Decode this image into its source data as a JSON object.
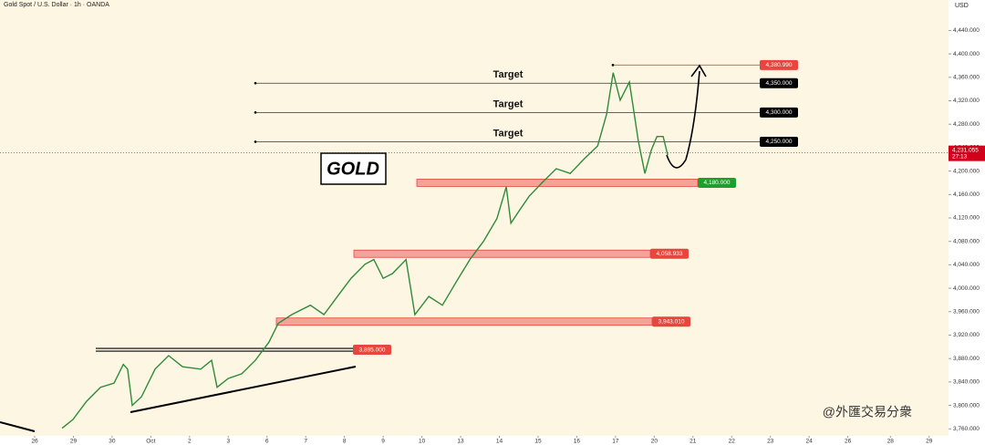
{
  "chart_data": {
    "type": "line",
    "title": "Gold Spot / U.S. Dollar · 1h · OANDA",
    "currency": "USD",
    "watermark": "@外匯交易分衆",
    "color": "#2e8b3a",
    "x": [
      0.71,
      0.99,
      1.34,
      1.7,
      2.05,
      2.29,
      2.4,
      2.52,
      2.76,
      3.11,
      3.46,
      3.82,
      4.29,
      4.57,
      4.71,
      5.0,
      5.35,
      5.7,
      6.05,
      6.29,
      6.64,
      7.12,
      7.47,
      7.82,
      8.17,
      8.53,
      8.76,
      9.0,
      9.24,
      9.59,
      9.82,
      10.18,
      10.53,
      10.88,
      11.24,
      11.59,
      11.94,
      12.18,
      12.3,
      12.53,
      12.77,
      13.12,
      13.47,
      13.83,
      14.18,
      14.54,
      14.77,
      14.94,
      15.12,
      15.36,
      15.59,
      15.76,
      15.92,
      16.07,
      16.23,
      16.35
    ],
    "values": [
      3761,
      3776,
      3807,
      3831,
      3838,
      3870,
      3862,
      3800,
      3815,
      3862,
      3885,
      3866,
      3862,
      3877,
      3831,
      3846,
      3854,
      3877,
      3908,
      3940,
      3955,
      3971,
      3955,
      3986,
      4017,
      4041,
      4049,
      4017,
      4025,
      4049,
      3955,
      3986,
      3971,
      4010,
      4049,
      4080,
      4119,
      4173,
      4111,
      4134,
      4157,
      4181,
      4204,
      4196,
      4220,
      4243,
      4297,
      4368,
      4321,
      4352,
      4251,
      4196,
      4235,
      4259,
      4259,
      4227
    ],
    "xlim": [
      -0.895,
      23.6
    ],
    "ylim": [
      3748,
      4492
    ],
    "xticks": [
      {
        "value": 0,
        "label": "26"
      },
      {
        "value": 1,
        "label": "29"
      },
      {
        "value": 2,
        "label": "30"
      },
      {
        "value": 3,
        "label": "Oct"
      },
      {
        "value": 4,
        "label": "2"
      },
      {
        "value": 5,
        "label": "3"
      },
      {
        "value": 6,
        "label": "6"
      },
      {
        "value": 7,
        "label": "7"
      },
      {
        "value": 8,
        "label": "8"
      },
      {
        "value": 9,
        "label": "9"
      },
      {
        "value": 10,
        "label": "10"
      },
      {
        "value": 11,
        "label": "13"
      },
      {
        "value": 12,
        "label": "14"
      },
      {
        "value": 13,
        "label": "15"
      },
      {
        "value": 14,
        "label": "16"
      },
      {
        "value": 15,
        "label": "17"
      },
      {
        "value": 16,
        "label": "20"
      },
      {
        "value": 17,
        "label": "21"
      },
      {
        "value": 18,
        "label": "22"
      },
      {
        "value": 19,
        "label": "23"
      },
      {
        "value": 20,
        "label": "24"
      },
      {
        "value": 21,
        "label": "26"
      },
      {
        "value": 22.1,
        "label": "28"
      },
      {
        "value": 23.1,
        "label": "29"
      }
    ],
    "yticks": [
      {
        "value": 4440,
        "label": "4,440.000"
      },
      {
        "value": 4400,
        "label": "4,400.000"
      },
      {
        "value": 4360,
        "label": "4,360.000"
      },
      {
        "value": 4320,
        "label": "4,320.000"
      },
      {
        "value": 4280,
        "label": "4,280.000"
      },
      {
        "value": 4240,
        "label": "4,240.000"
      },
      {
        "value": 4200,
        "label": "4,200.000"
      },
      {
        "value": 4160,
        "label": "4,160.000"
      },
      {
        "value": 4120,
        "label": "4,120.000"
      },
      {
        "value": 4080,
        "label": "4,080.000"
      },
      {
        "value": 4040,
        "label": "4,040.000"
      },
      {
        "value": 4000,
        "label": "4,000.000"
      },
      {
        "value": 3960,
        "label": "3,960.000"
      },
      {
        "value": 3920,
        "label": "3,920.000"
      },
      {
        "value": 3880,
        "label": "3,880.000"
      },
      {
        "value": 3840,
        "label": "3,840.000"
      },
      {
        "value": 3800,
        "label": "3,800.000"
      },
      {
        "value": 3760,
        "label": "3,760.000"
      }
    ],
    "levels": [
      {
        "value": 4380.99,
        "label": "4,380.990",
        "color": "#e8453c"
      },
      {
        "value": 4350,
        "label": "4,350.000",
        "color": "#000000"
      },
      {
        "value": 4300,
        "label": "4,300.000",
        "color": "#000000"
      },
      {
        "value": 4250,
        "label": "4,250.000",
        "color": "#000000"
      },
      {
        "value": 4180,
        "label": "4,180.000",
        "color": "#1e9e2e"
      },
      {
        "value": 4058.933,
        "label": "4,058.933",
        "color": "#e8453c"
      },
      {
        "value": 3943.01,
        "label": "3,943.010",
        "color": "#e8453c"
      },
      {
        "value": 3895,
        "label": "3,895.000",
        "color": "#e8453c"
      }
    ],
    "last_price": {
      "value": 4231.055,
      "label": "4,231.055",
      "countdown": "27:13",
      "color": "#d0021b"
    },
    "annotations": [
      "Target",
      "Target",
      "Target",
      "GOLD"
    ]
  }
}
